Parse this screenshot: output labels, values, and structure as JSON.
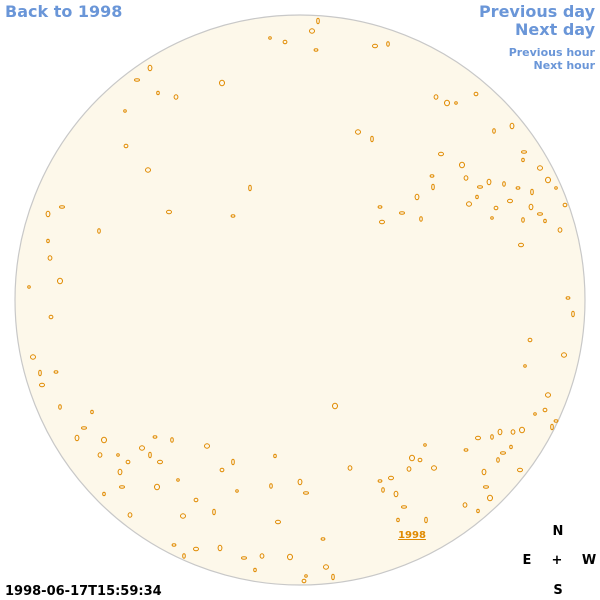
{
  "nav": {
    "back": "Back to 1998",
    "previous_day": "Previous day",
    "next_day": "Next day",
    "previous_hour": "Previous hour",
    "next_hour": "Next hour"
  },
  "timestamp": "1998-06-17T15:59:34",
  "compass": {
    "north": "N",
    "east": "E",
    "center": "+",
    "west": "W",
    "south": "S"
  },
  "disk_label": "1998"
}
